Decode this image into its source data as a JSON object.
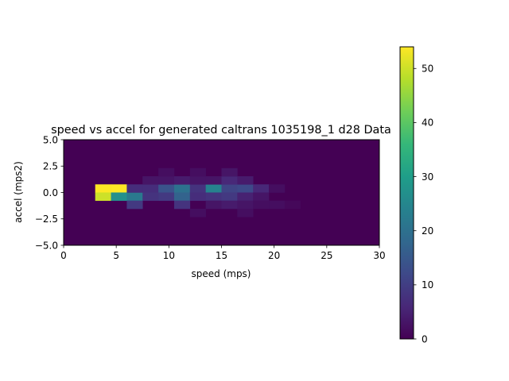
{
  "chart_data": {
    "type": "heatmap",
    "title": "speed vs accel for generated caltrans 1035198_1 d28 Data",
    "xlabel": "speed (mps)",
    "ylabel": "accel (mps2)",
    "xlim": [
      0,
      30
    ],
    "ylim": [
      -5,
      5
    ],
    "x_ticks": [
      0,
      5,
      10,
      15,
      20,
      25,
      30
    ],
    "x_tick_labels": [
      "0",
      "5",
      "10",
      "15",
      "20",
      "25",
      "30"
    ],
    "y_ticks": [
      5.0,
      2.5,
      0.0,
      -2.5,
      -5.0
    ],
    "y_tick_labels": [
      "5.0",
      "2.5",
      "0.0",
      "−2.5",
      "−5.0"
    ],
    "colorbar": {
      "min": 0,
      "max": 54,
      "ticks": [
        0,
        10,
        20,
        30,
        40,
        50
      ],
      "tick_labels": [
        "0",
        "10",
        "20",
        "30",
        "40",
        "50"
      ]
    },
    "bins": {
      "x_min": 0,
      "x_max": 30,
      "x_count": 20,
      "y_min": -5,
      "y_max": 5,
      "y_count": 13
    },
    "nonzero_cells": [
      {
        "speed": 3.75,
        "accel": 0.385,
        "count": 54
      },
      {
        "speed": 5.25,
        "accel": 0.385,
        "count": 54
      },
      {
        "speed": 3.75,
        "accel": -0.385,
        "count": 50
      },
      {
        "speed": 5.25,
        "accel": -0.385,
        "count": 27
      },
      {
        "speed": 6.75,
        "accel": -0.385,
        "count": 22
      },
      {
        "speed": 6.75,
        "accel": 0.385,
        "count": 7
      },
      {
        "speed": 6.75,
        "accel": -1.154,
        "count": 9
      },
      {
        "speed": 8.25,
        "accel": 0.385,
        "count": 7
      },
      {
        "speed": 8.25,
        "accel": -0.385,
        "count": 8
      },
      {
        "speed": 8.25,
        "accel": 1.154,
        "count": 3
      },
      {
        "speed": 9.75,
        "accel": 0.385,
        "count": 14
      },
      {
        "speed": 9.75,
        "accel": -0.385,
        "count": 9
      },
      {
        "speed": 9.75,
        "accel": 1.154,
        "count": 3
      },
      {
        "speed": 9.75,
        "accel": 1.923,
        "count": 2
      },
      {
        "speed": 11.25,
        "accel": 0.385,
        "count": 20
      },
      {
        "speed": 11.25,
        "accel": -0.385,
        "count": 17
      },
      {
        "speed": 11.25,
        "accel": -1.154,
        "count": 8
      },
      {
        "speed": 11.25,
        "accel": 1.154,
        "count": 4
      },
      {
        "speed": 12.75,
        "accel": 0.385,
        "count": 8
      },
      {
        "speed": 12.75,
        "accel": -0.385,
        "count": 7
      },
      {
        "speed": 12.75,
        "accel": 1.154,
        "count": 3
      },
      {
        "speed": 12.75,
        "accel": 1.923,
        "count": 2
      },
      {
        "speed": 12.75,
        "accel": -1.923,
        "count": 2
      },
      {
        "speed": 14.25,
        "accel": 0.385,
        "count": 24
      },
      {
        "speed": 14.25,
        "accel": -0.385,
        "count": 8
      },
      {
        "speed": 14.25,
        "accel": 1.154,
        "count": 3
      },
      {
        "speed": 14.25,
        "accel": -1.154,
        "count": 3
      },
      {
        "speed": 15.75,
        "accel": 0.385,
        "count": 11
      },
      {
        "speed": 15.75,
        "accel": -0.385,
        "count": 9
      },
      {
        "speed": 15.75,
        "accel": 1.154,
        "count": 6
      },
      {
        "speed": 15.75,
        "accel": 1.923,
        "count": 3
      },
      {
        "speed": 15.75,
        "accel": -1.154,
        "count": 4
      },
      {
        "speed": 17.25,
        "accel": 0.385,
        "count": 12
      },
      {
        "speed": 17.25,
        "accel": -0.385,
        "count": 5
      },
      {
        "speed": 17.25,
        "accel": 1.154,
        "count": 4
      },
      {
        "speed": 17.25,
        "accel": -1.154,
        "count": 3
      },
      {
        "speed": 17.25,
        "accel": -1.923,
        "count": 2
      },
      {
        "speed": 18.75,
        "accel": 0.385,
        "count": 6
      },
      {
        "speed": 18.75,
        "accel": -0.385,
        "count": 3
      },
      {
        "speed": 18.75,
        "accel": -1.154,
        "count": 2
      },
      {
        "speed": 20.25,
        "accel": 0.385,
        "count": 2
      },
      {
        "speed": 20.25,
        "accel": -1.154,
        "count": 2
      },
      {
        "speed": 21.75,
        "accel": -1.154,
        "count": 1
      }
    ]
  }
}
